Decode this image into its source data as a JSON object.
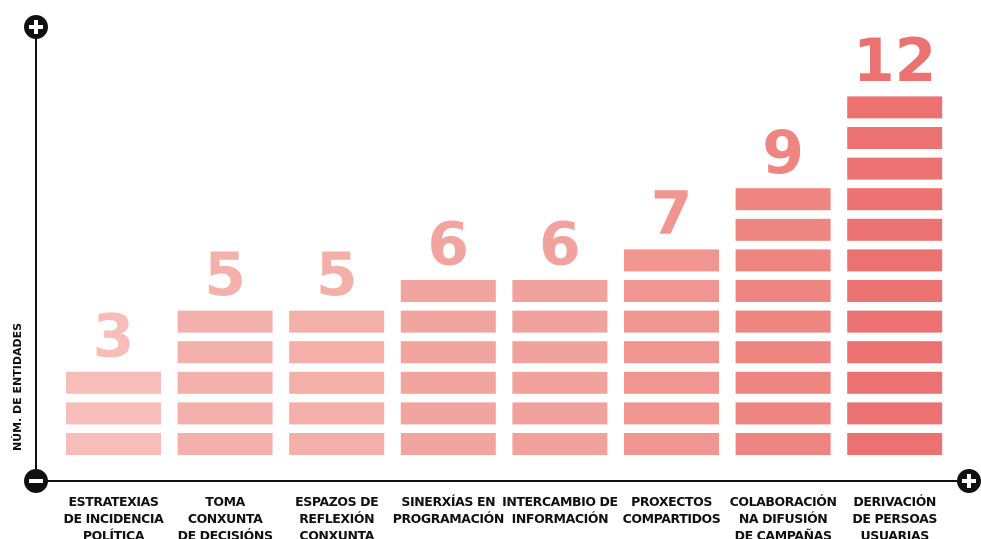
{
  "chart_data": {
    "type": "bar",
    "y_label": "NÚM. DE ENTIDADES",
    "categories": [
      "ESTRATEXIAS\nDE INCIDENCIA\nPOLÍTICA",
      "TOMA\nCONXUNTA\nDE DECISIÓNS",
      "ESPAZOS DE\nREFLEXIÓN\nCONXUNTA",
      "SINERXÍAS EN\nPROGRAMACIÓN",
      "INTERCAMBIO DE\nINFORMACIÓN",
      "PROXECTOS\nCOMPARTIDOS",
      "COLABORACIÓN\nNA DIFUSIÓN\nDE CAMPAÑAS",
      "DERIVACIÓN\nDE PERSOAS\nUSUARIAS"
    ],
    "values": [
      3,
      5,
      5,
      6,
      6,
      7,
      9,
      12
    ],
    "colors": [
      "#f6bdb9",
      "#f4b1ab",
      "#f4afa9",
      "#f2a49f",
      "#f2a29d",
      "#f0958f",
      "#ee8580",
      "#ec7271"
    ]
  }
}
